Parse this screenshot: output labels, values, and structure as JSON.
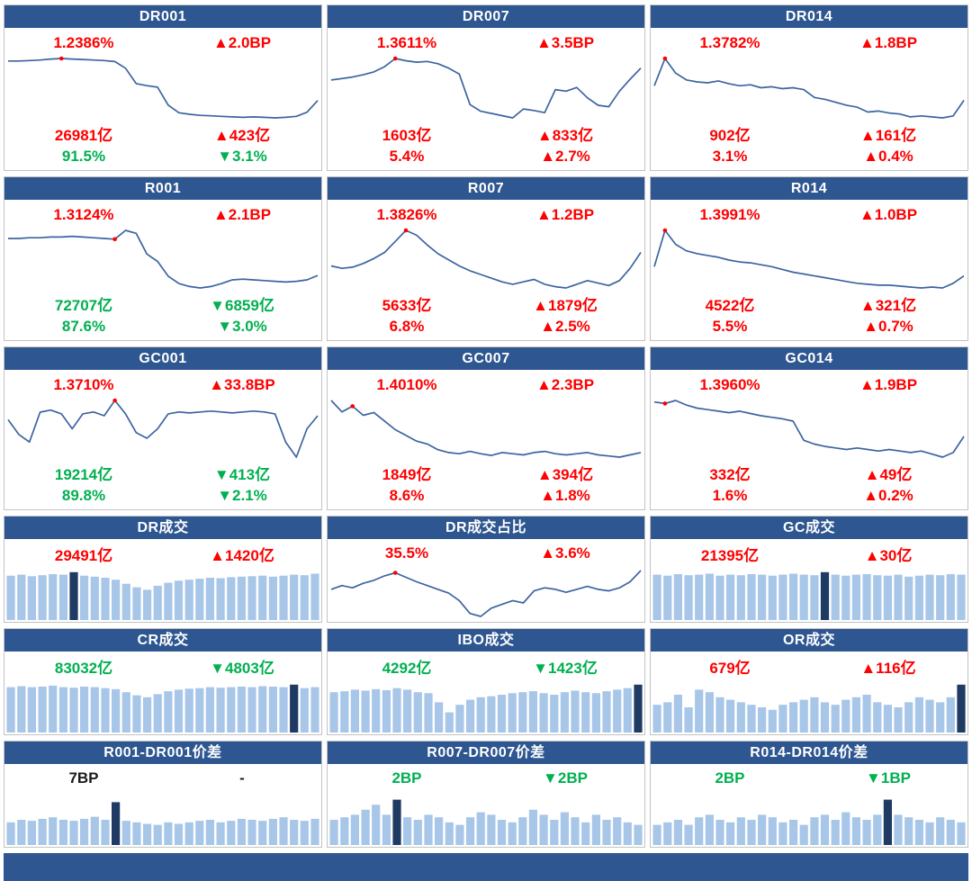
{
  "colors": {
    "header_bg": "#2E5690",
    "footer_bg": "#2E5690",
    "red": "#FE0000",
    "green": "#00B050",
    "line": "#3C64A0",
    "bar_light": "#A7C6E8",
    "bar_dark": "#1F3B63",
    "border": "#C3C3C3"
  },
  "rate_panels": [
    {
      "title": "DR001",
      "rate": "1.2386%",
      "rate_color": "red",
      "rate_chg": "▲2.0BP",
      "rate_chg_color": "red",
      "vol": "26981亿",
      "vol_color": "red",
      "vol_chg": "▲423亿",
      "vol_chg_color": "red",
      "share": "91.5%",
      "share_color": "green",
      "share_chg": "▼3.1%",
      "share_chg_color": "green"
    },
    {
      "title": "DR007",
      "rate": "1.3611%",
      "rate_color": "red",
      "rate_chg": "▲3.5BP",
      "rate_chg_color": "red",
      "vol": "1603亿",
      "vol_color": "red",
      "vol_chg": "▲833亿",
      "vol_chg_color": "red",
      "share": "5.4%",
      "share_color": "red",
      "share_chg": "▲2.7%",
      "share_chg_color": "red"
    },
    {
      "title": "DR014",
      "rate": "1.3782%",
      "rate_color": "red",
      "rate_chg": "▲1.8BP",
      "rate_chg_color": "red",
      "vol": "902亿",
      "vol_color": "red",
      "vol_chg": "▲161亿",
      "vol_chg_color": "red",
      "share": "3.1%",
      "share_color": "red",
      "share_chg": "▲0.4%",
      "share_chg_color": "red"
    },
    {
      "title": "R001",
      "rate": "1.3124%",
      "rate_color": "red",
      "rate_chg": "▲2.1BP",
      "rate_chg_color": "red",
      "vol": "72707亿",
      "vol_color": "green",
      "vol_chg": "▼6859亿",
      "vol_chg_color": "green",
      "share": "87.6%",
      "share_color": "green",
      "share_chg": "▼3.0%",
      "share_chg_color": "green"
    },
    {
      "title": "R007",
      "rate": "1.3826%",
      "rate_color": "red",
      "rate_chg": "▲1.2BP",
      "rate_chg_color": "red",
      "vol": "5633亿",
      "vol_color": "red",
      "vol_chg": "▲1879亿",
      "vol_chg_color": "red",
      "share": "6.8%",
      "share_color": "red",
      "share_chg": "▲2.5%",
      "share_chg_color": "red"
    },
    {
      "title": "R014",
      "rate": "1.3991%",
      "rate_color": "red",
      "rate_chg": "▲1.0BP",
      "rate_chg_color": "red",
      "vol": "4522亿",
      "vol_color": "red",
      "vol_chg": "▲321亿",
      "vol_chg_color": "red",
      "share": "5.5%",
      "share_color": "red",
      "share_chg": "▲0.7%",
      "share_chg_color": "red"
    },
    {
      "title": "GC001",
      "rate": "1.3710%",
      "rate_color": "red",
      "rate_chg": "▲33.8BP",
      "rate_chg_color": "red",
      "vol": "19214亿",
      "vol_color": "green",
      "vol_chg": "▼413亿",
      "vol_chg_color": "green",
      "share": "89.8%",
      "share_color": "green",
      "share_chg": "▼2.1%",
      "share_chg_color": "green"
    },
    {
      "title": "GC007",
      "rate": "1.4010%",
      "rate_color": "red",
      "rate_chg": "▲2.3BP",
      "rate_chg_color": "red",
      "vol": "1849亿",
      "vol_color": "red",
      "vol_chg": "▲394亿",
      "vol_chg_color": "red",
      "share": "8.6%",
      "share_color": "red",
      "share_chg": "▲1.8%",
      "share_chg_color": "red"
    },
    {
      "title": "GC014",
      "rate": "1.3960%",
      "rate_color": "red",
      "rate_chg": "▲1.9BP",
      "rate_chg_color": "red",
      "vol": "332亿",
      "vol_color": "red",
      "vol_chg": "▲49亿",
      "vol_chg_color": "red",
      "share": "1.6%",
      "share_color": "red",
      "share_chg": "▲0.2%",
      "share_chg_color": "red"
    }
  ],
  "flow_panels": [
    {
      "title": "DR成交",
      "val": "29491亿",
      "val_color": "red",
      "chg": "▲1420亿",
      "chg_color": "red"
    },
    {
      "title": "DR成交占比",
      "val": "35.5%",
      "val_color": "red",
      "chg": "▲3.6%",
      "chg_color": "red"
    },
    {
      "title": "GC成交",
      "val": "21395亿",
      "val_color": "red",
      "chg": "▲30亿",
      "chg_color": "red"
    },
    {
      "title": "CR成交",
      "val": "83032亿",
      "val_color": "green",
      "chg": "▼4803亿",
      "chg_color": "green"
    },
    {
      "title": "IBO成交",
      "val": "4292亿",
      "val_color": "green",
      "chg": "▼1423亿",
      "chg_color": "green"
    },
    {
      "title": "OR成交",
      "val": "679亿",
      "val_color": "red",
      "chg": "▲116亿",
      "chg_color": "red"
    }
  ],
  "spread_panels": [
    {
      "title": "R001-DR001价差",
      "val": "7BP",
      "val_color": "black",
      "chg": "-",
      "chg_color": "black"
    },
    {
      "title": "R007-DR007价差",
      "val": "2BP",
      "val_color": "green",
      "chg": "▼2BP",
      "chg_color": "green"
    },
    {
      "title": "R014-DR014价差",
      "val": "2BP",
      "val_color": "green",
      "chg": "▼1BP",
      "chg_color": "green"
    }
  ],
  "chart_data": [
    {
      "title": "DR001",
      "type": "line",
      "unit": "%",
      "current": 1.2386,
      "change_bp": 2.0,
      "marker_index": 5,
      "values": [
        1.316,
        1.316,
        1.317,
        1.318,
        1.32,
        1.321,
        1.32,
        1.319,
        1.318,
        1.317,
        1.315,
        1.302,
        1.272,
        1.268,
        1.265,
        1.23,
        1.215,
        1.212,
        1.21,
        1.209,
        1.208,
        1.207,
        1.206,
        1.207,
        1.206,
        1.205,
        1.206,
        1.208,
        1.216,
        1.239
      ]
    },
    {
      "title": "DR007",
      "type": "line",
      "unit": "%",
      "current": 1.3611,
      "change_bp": 3.5,
      "marker_index": 6,
      "values": [
        1.345,
        1.347,
        1.349,
        1.352,
        1.356,
        1.363,
        1.374,
        1.371,
        1.369,
        1.37,
        1.367,
        1.361,
        1.353,
        1.312,
        1.303,
        1.3,
        1.297,
        1.294,
        1.306,
        1.304,
        1.301,
        1.332,
        1.33,
        1.335,
        1.321,
        1.311,
        1.309,
        1.33,
        1.346,
        1.361
      ]
    },
    {
      "title": "DR014",
      "type": "line",
      "unit": "%",
      "current": 1.3782,
      "change_bp": 1.8,
      "marker_index": 1,
      "values": [
        1.393,
        1.421,
        1.406,
        1.399,
        1.397,
        1.396,
        1.398,
        1.395,
        1.393,
        1.394,
        1.391,
        1.392,
        1.39,
        1.391,
        1.389,
        1.381,
        1.379,
        1.376,
        1.373,
        1.371,
        1.366,
        1.367,
        1.365,
        1.364,
        1.361,
        1.362,
        1.361,
        1.36,
        1.362,
        1.378
      ]
    },
    {
      "title": "R001",
      "type": "line",
      "unit": "%",
      "current": 1.3124,
      "change_bp": 2.1,
      "marker_index": 10,
      "values": [
        1.362,
        1.362,
        1.363,
        1.363,
        1.364,
        1.364,
        1.365,
        1.364,
        1.363,
        1.362,
        1.361,
        1.373,
        1.369,
        1.341,
        1.331,
        1.311,
        1.301,
        1.297,
        1.295,
        1.297,
        1.301,
        1.306,
        1.307,
        1.306,
        1.305,
        1.304,
        1.303,
        1.304,
        1.306,
        1.312
      ]
    },
    {
      "title": "R007",
      "type": "line",
      "unit": "%",
      "current": 1.3826,
      "change_bp": 1.2,
      "marker_index": 7,
      "values": [
        1.372,
        1.37,
        1.371,
        1.374,
        1.378,
        1.383,
        1.392,
        1.401,
        1.397,
        1.389,
        1.382,
        1.377,
        1.372,
        1.368,
        1.365,
        1.362,
        1.359,
        1.357,
        1.359,
        1.361,
        1.357,
        1.355,
        1.354,
        1.357,
        1.36,
        1.358,
        1.356,
        1.36,
        1.37,
        1.383
      ]
    },
    {
      "title": "R014",
      "type": "line",
      "unit": "%",
      "current": 1.3991,
      "change_bp": 1.0,
      "marker_index": 1,
      "values": [
        1.409,
        1.448,
        1.433,
        1.426,
        1.423,
        1.421,
        1.419,
        1.416,
        1.414,
        1.413,
        1.411,
        1.409,
        1.406,
        1.403,
        1.401,
        1.399,
        1.397,
        1.395,
        1.393,
        1.391,
        1.39,
        1.389,
        1.389,
        1.388,
        1.387,
        1.386,
        1.387,
        1.386,
        1.391,
        1.399
      ]
    },
    {
      "title": "GC001",
      "type": "line",
      "unit": "%",
      "current": 1.371,
      "change_bp": 33.8,
      "marker_index": 10,
      "values": [
        1.35,
        1.272,
        1.232,
        1.39,
        1.401,
        1.381,
        1.302,
        1.381,
        1.391,
        1.371,
        1.452,
        1.381,
        1.282,
        1.252,
        1.302,
        1.381,
        1.391,
        1.386,
        1.391,
        1.396,
        1.391,
        1.386,
        1.391,
        1.396,
        1.391,
        1.381,
        1.232,
        1.152,
        1.302,
        1.371
      ]
    },
    {
      "title": "GC007",
      "type": "line",
      "unit": "%",
      "current": 1.401,
      "change_bp": 2.3,
      "marker_index": 2,
      "values": [
        1.492,
        1.472,
        1.482,
        1.466,
        1.471,
        1.456,
        1.441,
        1.431,
        1.421,
        1.416,
        1.406,
        1.401,
        1.399,
        1.403,
        1.399,
        1.396,
        1.401,
        1.399,
        1.397,
        1.401,
        1.403,
        1.399,
        1.397,
        1.399,
        1.401,
        1.397,
        1.395,
        1.393,
        1.397,
        1.401
      ]
    },
    {
      "title": "GC014",
      "type": "line",
      "unit": "%",
      "current": 1.396,
      "change_bp": 1.9,
      "marker_index": 1,
      "values": [
        1.441,
        1.439,
        1.443,
        1.437,
        1.433,
        1.431,
        1.429,
        1.427,
        1.429,
        1.426,
        1.423,
        1.421,
        1.419,
        1.416,
        1.391,
        1.386,
        1.383,
        1.381,
        1.379,
        1.381,
        1.379,
        1.377,
        1.379,
        1.377,
        1.375,
        1.377,
        1.373,
        1.369,
        1.375,
        1.396
      ]
    },
    {
      "title": "DR成交",
      "type": "bar",
      "scale": "relative-height",
      "current_label": "29491亿",
      "highlight_index": 6,
      "values": [
        0.88,
        0.9,
        0.87,
        0.89,
        0.91,
        0.9,
        0.95,
        0.88,
        0.86,
        0.84,
        0.8,
        0.72,
        0.65,
        0.6,
        0.68,
        0.74,
        0.78,
        0.8,
        0.82,
        0.84,
        0.83,
        0.85,
        0.86,
        0.87,
        0.88,
        0.86,
        0.88,
        0.9,
        0.89,
        0.92
      ]
    },
    {
      "title": "DR成交占比",
      "type": "line",
      "unit": "%",
      "current": 35.5,
      "change_pct": 3.6,
      "marker_index": 6,
      "values": [
        33.0,
        33.5,
        33.2,
        33.8,
        34.2,
        34.8,
        35.2,
        34.6,
        34.0,
        33.5,
        33.0,
        32.5,
        31.5,
        29.8,
        29.4,
        30.5,
        31.0,
        31.5,
        31.2,
        32.8,
        33.2,
        33.0,
        32.6,
        33.0,
        33.4,
        33.0,
        32.8,
        33.2,
        34.0,
        35.5
      ]
    },
    {
      "title": "GC成交",
      "type": "bar",
      "scale": "relative-height",
      "current_label": "21395亿",
      "highlight_index": 16,
      "values": [
        0.9,
        0.88,
        0.91,
        0.89,
        0.9,
        0.92,
        0.88,
        0.9,
        0.89,
        0.91,
        0.9,
        0.88,
        0.9,
        0.92,
        0.9,
        0.89,
        0.95,
        0.9,
        0.88,
        0.9,
        0.91,
        0.89,
        0.88,
        0.9,
        0.86,
        0.88,
        0.9,
        0.89,
        0.91,
        0.9
      ]
    },
    {
      "title": "CR成交",
      "type": "bar",
      "scale": "relative-height",
      "current_label": "83032亿",
      "highlight_index": 27,
      "values": [
        0.9,
        0.92,
        0.9,
        0.91,
        0.93,
        0.9,
        0.89,
        0.91,
        0.9,
        0.88,
        0.86,
        0.8,
        0.74,
        0.7,
        0.76,
        0.82,
        0.85,
        0.87,
        0.88,
        0.9,
        0.89,
        0.9,
        0.91,
        0.9,
        0.92,
        0.91,
        0.9,
        0.95,
        0.88,
        0.9
      ]
    },
    {
      "title": "IBO成交",
      "type": "bar",
      "scale": "relative-height",
      "current_label": "4292亿",
      "highlight_index": 29,
      "values": [
        0.8,
        0.82,
        0.85,
        0.83,
        0.86,
        0.84,
        0.88,
        0.85,
        0.8,
        0.78,
        0.6,
        0.4,
        0.55,
        0.65,
        0.7,
        0.72,
        0.75,
        0.78,
        0.8,
        0.82,
        0.78,
        0.75,
        0.8,
        0.83,
        0.8,
        0.78,
        0.82,
        0.85,
        0.88,
        0.95
      ]
    },
    {
      "title": "OR成交",
      "type": "bar",
      "scale": "relative-height",
      "current_label": "679亿",
      "highlight_index": 29,
      "values": [
        0.55,
        0.6,
        0.75,
        0.5,
        0.85,
        0.8,
        0.7,
        0.65,
        0.6,
        0.55,
        0.5,
        0.45,
        0.55,
        0.6,
        0.65,
        0.7,
        0.6,
        0.55,
        0.65,
        0.7,
        0.75,
        0.6,
        0.55,
        0.5,
        0.6,
        0.7,
        0.65,
        0.6,
        0.7,
        0.95
      ]
    },
    {
      "title": "R001-DR001价差",
      "type": "bar",
      "scale": "relative-height",
      "current_label": "7BP",
      "highlight_index": 10,
      "values": [
        0.45,
        0.5,
        0.48,
        0.52,
        0.55,
        0.5,
        0.48,
        0.52,
        0.56,
        0.5,
        0.85,
        0.48,
        0.45,
        0.42,
        0.4,
        0.45,
        0.42,
        0.45,
        0.48,
        0.5,
        0.45,
        0.48,
        0.52,
        0.5,
        0.48,
        0.52,
        0.55,
        0.5,
        0.48,
        0.52
      ]
    },
    {
      "title": "R007-DR007价差",
      "type": "bar",
      "scale": "relative-height",
      "current_label": "2BP",
      "highlight_index": 6,
      "values": [
        0.5,
        0.55,
        0.6,
        0.7,
        0.8,
        0.6,
        0.9,
        0.55,
        0.5,
        0.6,
        0.55,
        0.45,
        0.4,
        0.55,
        0.65,
        0.6,
        0.5,
        0.45,
        0.55,
        0.7,
        0.6,
        0.5,
        0.65,
        0.55,
        0.45,
        0.6,
        0.5,
        0.55,
        0.45,
        0.4
      ]
    },
    {
      "title": "R014-DR014价差",
      "type": "bar",
      "scale": "relative-height",
      "current_label": "2BP",
      "highlight_index": 22,
      "values": [
        0.4,
        0.45,
        0.5,
        0.4,
        0.55,
        0.6,
        0.5,
        0.45,
        0.55,
        0.5,
        0.6,
        0.55,
        0.45,
        0.5,
        0.4,
        0.55,
        0.6,
        0.5,
        0.65,
        0.55,
        0.5,
        0.6,
        0.9,
        0.6,
        0.55,
        0.5,
        0.45,
        0.55,
        0.5,
        0.45
      ]
    }
  ]
}
